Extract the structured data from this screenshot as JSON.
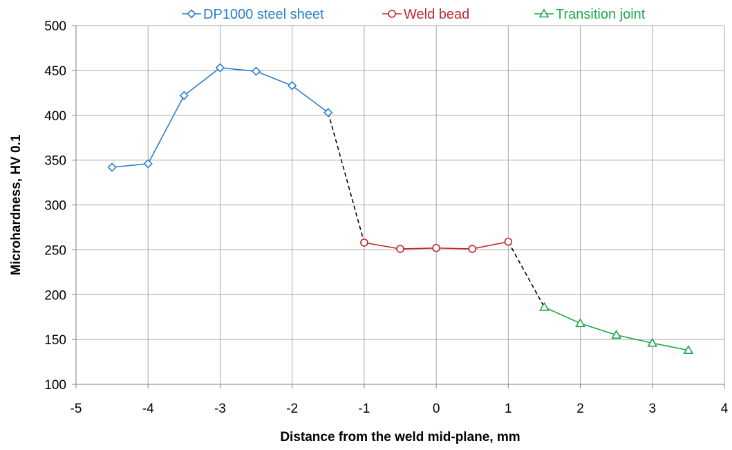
{
  "chart_data": {
    "type": "line",
    "title": "",
    "xlabel": "Distance from the weld mid-plane, mm",
    "ylabel": "Microhardness, HV 0.1",
    "xlim": [
      -5,
      4
    ],
    "ylim": [
      100,
      500
    ],
    "x_ticks": [
      "-5",
      "-4",
      "-3",
      "-2",
      "-1",
      "0",
      "1",
      "2",
      "3",
      "4"
    ],
    "y_ticks": [
      "100",
      "150",
      "200",
      "250",
      "300",
      "350",
      "400",
      "450",
      "500"
    ],
    "grid": true,
    "legend_position": "top",
    "series": [
      {
        "name": "DP1000 steel sheet",
        "color": "#2a7dc9",
        "marker": "diamond",
        "points": [
          [
            -4.5,
            342
          ],
          [
            -4.0,
            346
          ],
          [
            -3.5,
            422
          ],
          [
            -3.0,
            453
          ],
          [
            -2.5,
            449
          ],
          [
            -2.0,
            433
          ],
          [
            -1.5,
            403
          ]
        ]
      },
      {
        "name": "Weld bead",
        "color": "#c0282e",
        "marker": "circle",
        "points": [
          [
            -1.0,
            258
          ],
          [
            -0.5,
            251
          ],
          [
            0.0,
            252
          ],
          [
            0.5,
            251
          ],
          [
            1.0,
            259
          ]
        ]
      },
      {
        "name": "Transition joint",
        "color": "#1ea84a",
        "marker": "triangle",
        "points": [
          [
            1.5,
            186
          ],
          [
            2.0,
            168
          ],
          [
            2.5,
            155
          ],
          [
            3.0,
            146
          ],
          [
            3.5,
            138
          ]
        ]
      }
    ],
    "connectors": [
      {
        "style": "dashed",
        "color": "#000000",
        "points": [
          [
            -1.5,
            403
          ],
          [
            -1.0,
            258
          ]
        ]
      },
      {
        "style": "dashed",
        "color": "#000000",
        "points": [
          [
            1.0,
            259
          ],
          [
            1.5,
            186
          ]
        ]
      }
    ]
  }
}
